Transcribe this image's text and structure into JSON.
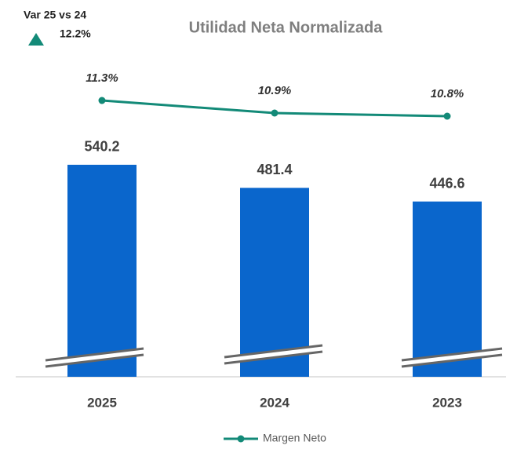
{
  "chart_data": {
    "type": "bar",
    "title": "Utilidad Neta Normalizada",
    "annotation": {
      "label": "Var 25 vs 24",
      "value": "12.2%"
    },
    "categories": [
      "2025",
      "2024",
      "2023"
    ],
    "values": [
      540.2,
      481.4,
      446.6
    ],
    "color": "#0a66cc",
    "ylim": [
      0,
      760
    ],
    "series": [
      {
        "name": "Margen Neto",
        "type": "line",
        "color": "#138a78",
        "axis": "y2",
        "values": [
          11.3,
          10.9,
          10.8
        ],
        "value_labels": [
          "11.3%",
          "10.9%",
          "10.8%"
        ]
      }
    ],
    "y2lim": [
      2.5,
      12
    ],
    "legend": "bottom"
  }
}
